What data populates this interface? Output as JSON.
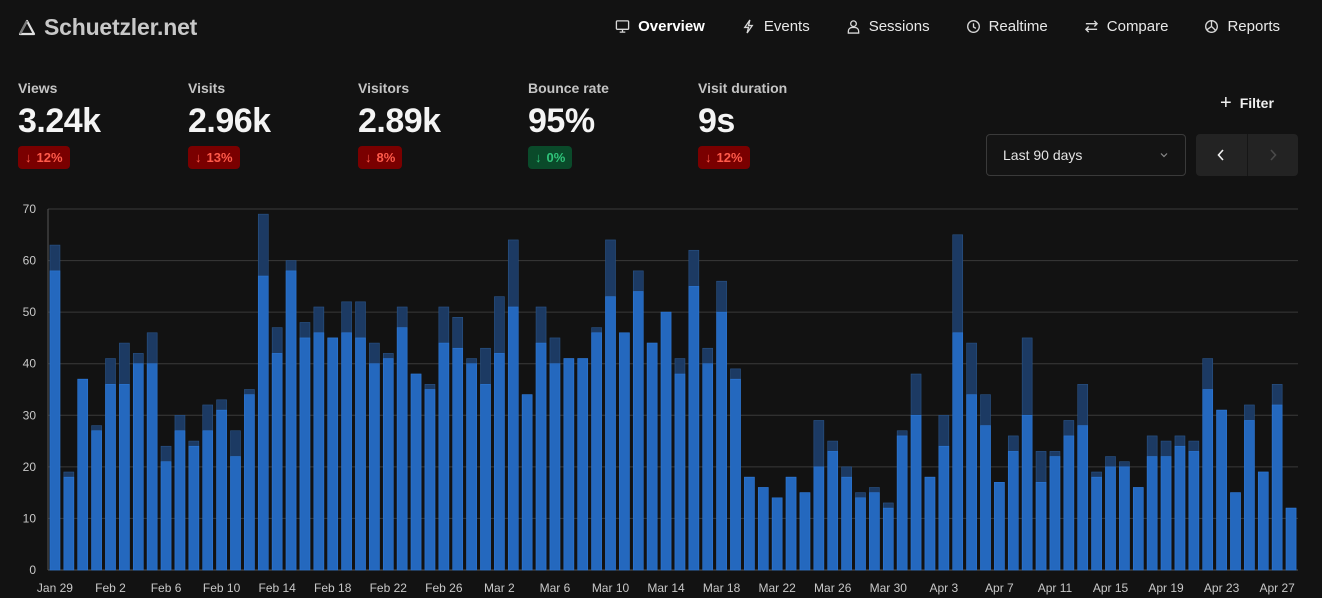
{
  "header": {
    "site_name": "Schuetzler.net",
    "logo_icon": "triangle-logo-icon",
    "nav": [
      {
        "label": "Overview",
        "icon": "monitor-icon",
        "active": true
      },
      {
        "label": "Events",
        "icon": "lightning-icon",
        "active": false
      },
      {
        "label": "Sessions",
        "icon": "user-icon",
        "active": false
      },
      {
        "label": "Realtime",
        "icon": "clock-icon",
        "active": false
      },
      {
        "label": "Compare",
        "icon": "arrows-swap-icon",
        "active": false
      },
      {
        "label": "Reports",
        "icon": "pie-chart-icon",
        "active": false
      }
    ]
  },
  "metrics": [
    {
      "label": "Views",
      "value": "3.24k",
      "change": "12%",
      "direction": "down",
      "status": "negative"
    },
    {
      "label": "Visits",
      "value": "2.96k",
      "change": "13%",
      "direction": "down",
      "status": "negative"
    },
    {
      "label": "Visitors",
      "value": "2.89k",
      "change": "8%",
      "direction": "down",
      "status": "negative"
    },
    {
      "label": "Bounce rate",
      "value": "95%",
      "change": "0%",
      "direction": "down",
      "status": "positive"
    },
    {
      "label": "Visit duration",
      "value": "9s",
      "change": "12%",
      "direction": "down",
      "status": "negative"
    }
  ],
  "controls": {
    "filter_label": "Filter",
    "date_range": "Last 90 days",
    "prev_icon": "chevron-left-icon",
    "next_icon": "chevron-right-icon"
  },
  "colors": {
    "background": "#121212",
    "bar_primary": "#2468be",
    "bar_secondary": "#1c3a63",
    "negative_badge_bg": "#7a0000",
    "negative_badge_text": "#ff5a4a",
    "positive_badge_bg": "#0a4a2a",
    "positive_badge_text": "#2fc47a"
  },
  "chart_data": {
    "type": "bar",
    "stacked_overlay": true,
    "title": "",
    "xlabel": "",
    "ylabel": "",
    "ylim": [
      0,
      70
    ],
    "yticks": [
      0,
      10,
      20,
      30,
      40,
      50,
      60,
      70
    ],
    "grid": true,
    "xtick_labels": [
      "Jan 29",
      "Feb 2",
      "Feb 6",
      "Feb 10",
      "Feb 14",
      "Feb 18",
      "Feb 22",
      "Feb 26",
      "Mar 2",
      "Mar 6",
      "Mar 10",
      "Mar 14",
      "Mar 18",
      "Mar 22",
      "Mar 26",
      "Mar 30",
      "Apr 3",
      "Apr 7",
      "Apr 11",
      "Apr 15",
      "Apr 19",
      "Apr 23",
      "Apr 27"
    ],
    "categories": [
      "Jan 29",
      "Jan 30",
      "Jan 31",
      "Feb 1",
      "Feb 2",
      "Feb 3",
      "Feb 4",
      "Feb 5",
      "Feb 6",
      "Feb 7",
      "Feb 8",
      "Feb 9",
      "Feb 10",
      "Feb 11",
      "Feb 12",
      "Feb 13",
      "Feb 14",
      "Feb 15",
      "Feb 16",
      "Feb 17",
      "Feb 18",
      "Feb 19",
      "Feb 20",
      "Feb 21",
      "Feb 22",
      "Feb 23",
      "Feb 24",
      "Feb 25",
      "Feb 26",
      "Feb 27",
      "Feb 28",
      "Mar 1",
      "Mar 2",
      "Mar 3",
      "Mar 4",
      "Mar 5",
      "Mar 6",
      "Mar 7",
      "Mar 8",
      "Mar 9",
      "Mar 10",
      "Mar 11",
      "Mar 12",
      "Mar 13",
      "Mar 14",
      "Mar 15",
      "Mar 16",
      "Mar 17",
      "Mar 18",
      "Mar 19",
      "Mar 20",
      "Mar 21",
      "Mar 22",
      "Mar 23",
      "Mar 24",
      "Mar 25",
      "Mar 26",
      "Mar 27",
      "Mar 28",
      "Mar 29",
      "Mar 30",
      "Mar 31",
      "Apr 1",
      "Apr 2",
      "Apr 3",
      "Apr 4",
      "Apr 5",
      "Apr 6",
      "Apr 7",
      "Apr 8",
      "Apr 9",
      "Apr 10",
      "Apr 11",
      "Apr 12",
      "Apr 13",
      "Apr 14",
      "Apr 15",
      "Apr 16",
      "Apr 17",
      "Apr 18",
      "Apr 19",
      "Apr 20",
      "Apr 21",
      "Apr 22",
      "Apr 23",
      "Apr 24",
      "Apr 25",
      "Apr 26",
      "Apr 27",
      "Apr 28"
    ],
    "series": [
      {
        "name": "Views",
        "values": [
          63,
          19,
          37,
          28,
          41,
          44,
          42,
          46,
          24,
          30,
          25,
          32,
          33,
          27,
          35,
          69,
          47,
          60,
          48,
          51,
          45,
          52,
          52,
          44,
          42,
          51,
          38,
          36,
          51,
          49,
          41,
          43,
          53,
          64,
          34,
          51,
          45,
          41,
          41,
          47,
          64,
          46,
          58,
          44,
          50,
          41,
          62,
          43,
          56,
          39,
          18,
          16,
          14,
          18,
          15,
          29,
          25,
          20,
          15,
          16,
          13,
          27,
          38,
          18,
          30,
          65,
          44,
          34,
          17,
          26,
          45,
          23,
          23,
          29,
          36,
          19,
          22,
          21,
          16,
          26,
          25,
          26,
          25,
          41,
          31,
          15,
          32,
          19,
          36,
          12
        ]
      },
      {
        "name": "Visitors",
        "values": [
          58,
          18,
          37,
          27,
          36,
          36,
          40,
          40,
          21,
          27,
          24,
          27,
          31,
          22,
          34,
          57,
          42,
          58,
          45,
          46,
          45,
          46,
          45,
          40,
          41,
          47,
          38,
          35,
          44,
          43,
          40,
          36,
          42,
          51,
          34,
          44,
          40,
          41,
          41,
          46,
          53,
          46,
          54,
          44,
          50,
          38,
          55,
          40,
          50,
          37,
          18,
          16,
          14,
          18,
          15,
          20,
          23,
          18,
          14,
          15,
          12,
          26,
          30,
          18,
          24,
          46,
          34,
          28,
          17,
          23,
          30,
          17,
          22,
          26,
          28,
          18,
          20,
          20,
          16,
          22,
          22,
          24,
          23,
          35,
          31,
          15,
          29,
          19,
          32,
          12
        ]
      }
    ]
  }
}
